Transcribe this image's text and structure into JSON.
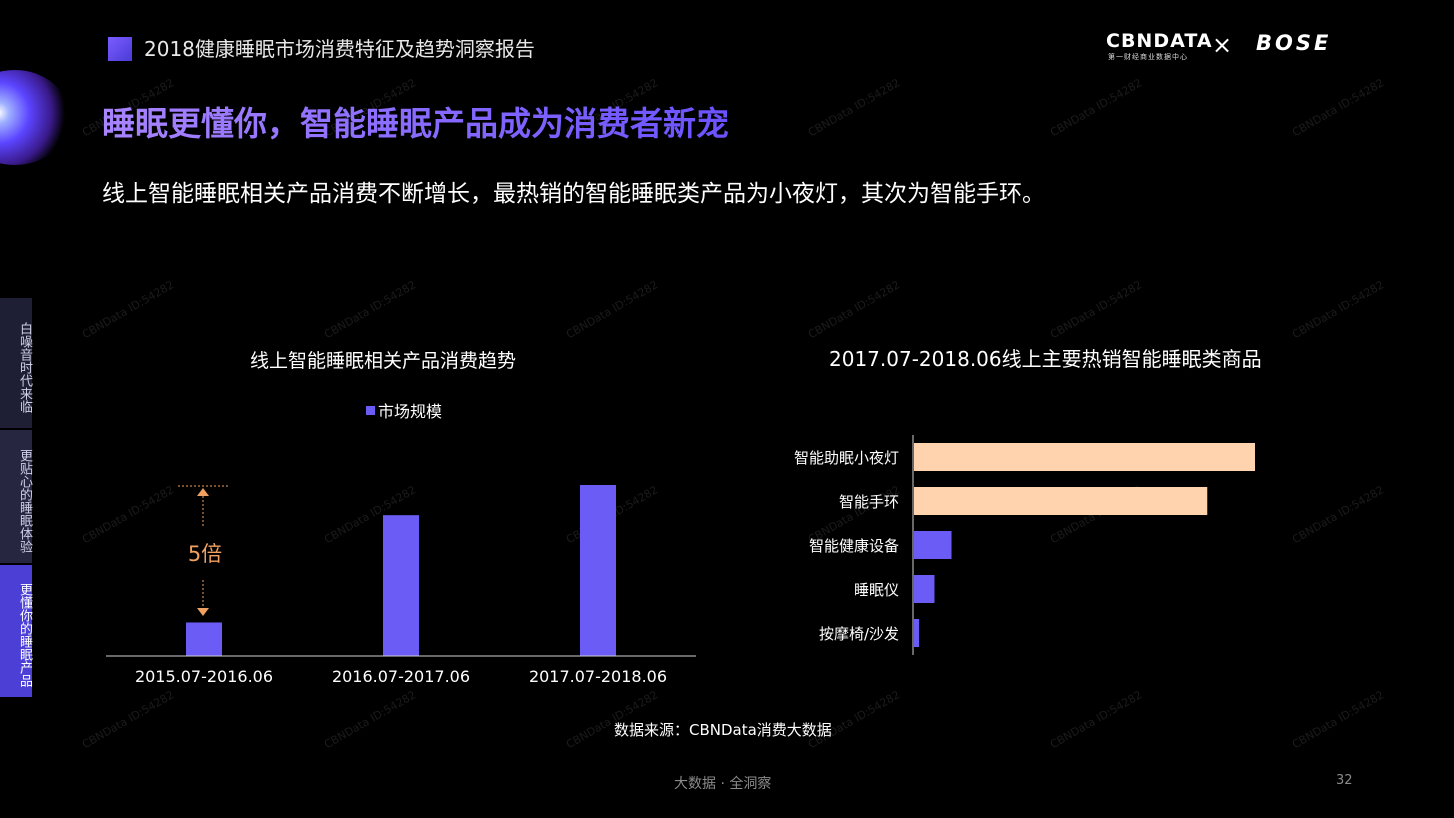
{
  "header": {
    "report_title": "2018健康睡眠市场消费特征及趋势洞察报告",
    "logo_cbn": "CBNDATA",
    "logo_cbn_sub": "第一财经商业数据中心",
    "logo_separator": "×",
    "logo_partner": "BOSE"
  },
  "main_title": "睡眠更懂你，智能睡眠产品成为消费者新宠",
  "subtitle": "线上智能睡眠相关产品消费不断增长，最热销的智能睡眠类产品为小夜灯，其次为智能手环。",
  "side_nav": {
    "items": [
      {
        "label": "白噪音时代来临"
      },
      {
        "label": "更贴心的睡眠体验"
      },
      {
        "label": "更懂你的睡眠产品"
      }
    ],
    "active_index": 2
  },
  "watermark": "CBNData ID:54282",
  "chart_data": [
    {
      "type": "bar",
      "title": "线上智能睡眠相关产品消费趋势",
      "categories": [
        "2015.07-2016.06",
        "2016.07-2017.06",
        "2017.07-2018.06"
      ],
      "series": [
        {
          "name": "市场规模",
          "values": [
            1,
            4.2,
            5.1
          ]
        }
      ],
      "annotation": "5倍",
      "color": "#6c5cf6",
      "legend_position": "top"
    },
    {
      "type": "bar",
      "orientation": "horizontal",
      "title": "2017.07-2018.06线上主要热销智能睡眠类商品",
      "categories": [
        "智能助眠小夜灯",
        "智能手环",
        "智能健康设备",
        "睡眠仪",
        "按摩椅/沙发"
      ],
      "values": [
        100,
        86,
        11,
        6,
        1.5
      ],
      "colors": [
        "#ffd3ad",
        "#ffd3ad",
        "#6c5cf6",
        "#6c5cf6",
        "#6c5cf6"
      ]
    }
  ],
  "source": "数据来源：CBNData消费大数据",
  "footer": "大数据 · 全洞察",
  "page_number": "32"
}
